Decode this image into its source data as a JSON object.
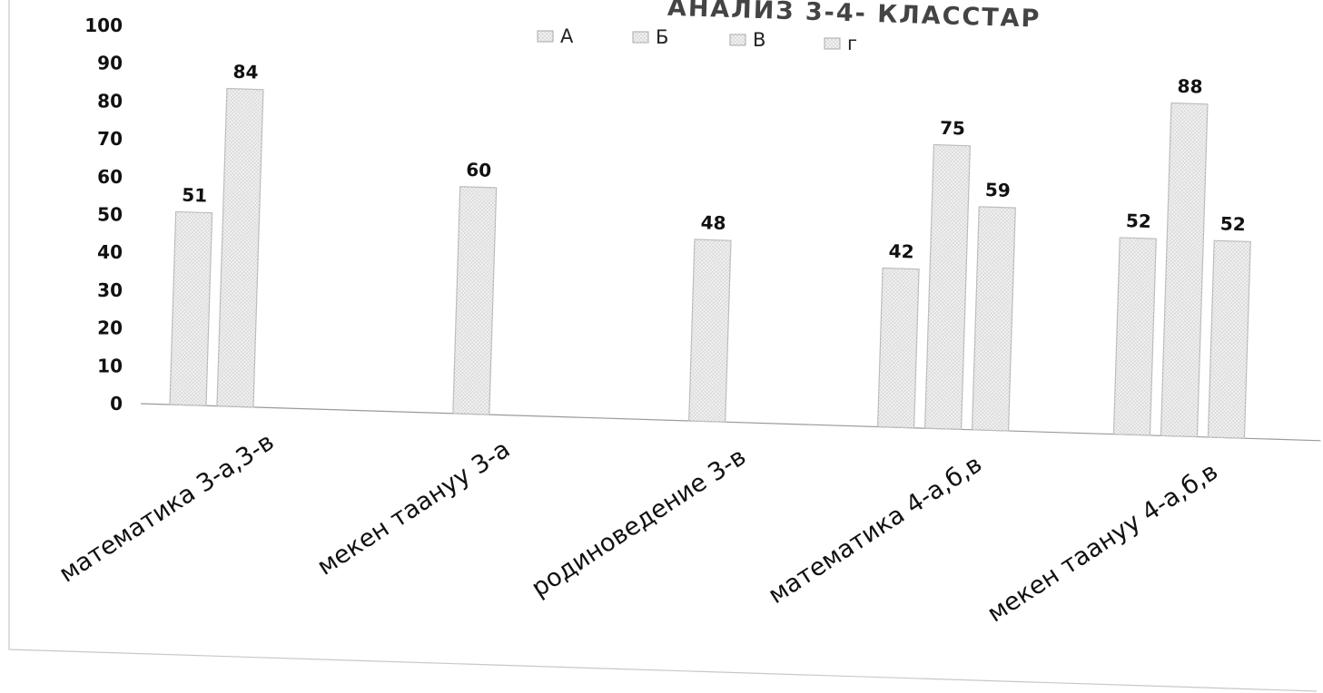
{
  "chart_data": {
    "type": "bar",
    "title": "АНАЛИЗ 3-4- КЛАССТАР",
    "categories": [
      "математика 3-а,3-в",
      "мекен таануу 3-а",
      "родиноведение 3-в",
      "математика 4-а,б,в",
      "мекен таануу 4-а,б,в"
    ],
    "series": [
      {
        "name": "А",
        "values": [
          51,
          null,
          null,
          42,
          52
        ]
      },
      {
        "name": "Б",
        "values": [
          84,
          60,
          48,
          75,
          88
        ]
      },
      {
        "name": "В",
        "values": [
          null,
          null,
          null,
          59,
          52
        ]
      },
      {
        "name": "г",
        "values": [
          null,
          null,
          null,
          null,
          null
        ]
      }
    ],
    "yticks": [
      0,
      10,
      20,
      30,
      40,
      50,
      60,
      70,
      80,
      90,
      100
    ],
    "ylim": [
      0,
      100
    ],
    "xlabel": "",
    "ylabel": "",
    "grid": false,
    "legend_position": "top"
  }
}
